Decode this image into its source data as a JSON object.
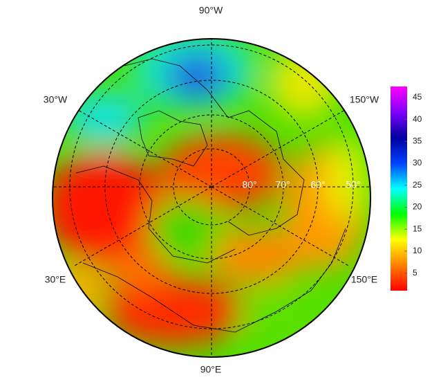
{
  "map": {
    "longitude_labels": [
      "90°W",
      "30°W",
      "150°W",
      "30°E",
      "150°E",
      "90°E"
    ],
    "latitude_labels": [
      "80°",
      "70°",
      "60°",
      "50°"
    ]
  },
  "colorbar": {
    "range": [
      1,
      47.5
    ],
    "ticks": [
      5,
      10,
      15,
      20,
      25,
      30,
      35,
      40,
      45
    ],
    "colors": [
      "#ff0000",
      "#ff8000",
      "#ffff00",
      "#00ff00",
      "#00ffff",
      "#0040ff",
      "#0000a0",
      "#8000ff",
      "#ff00ff"
    ]
  }
}
